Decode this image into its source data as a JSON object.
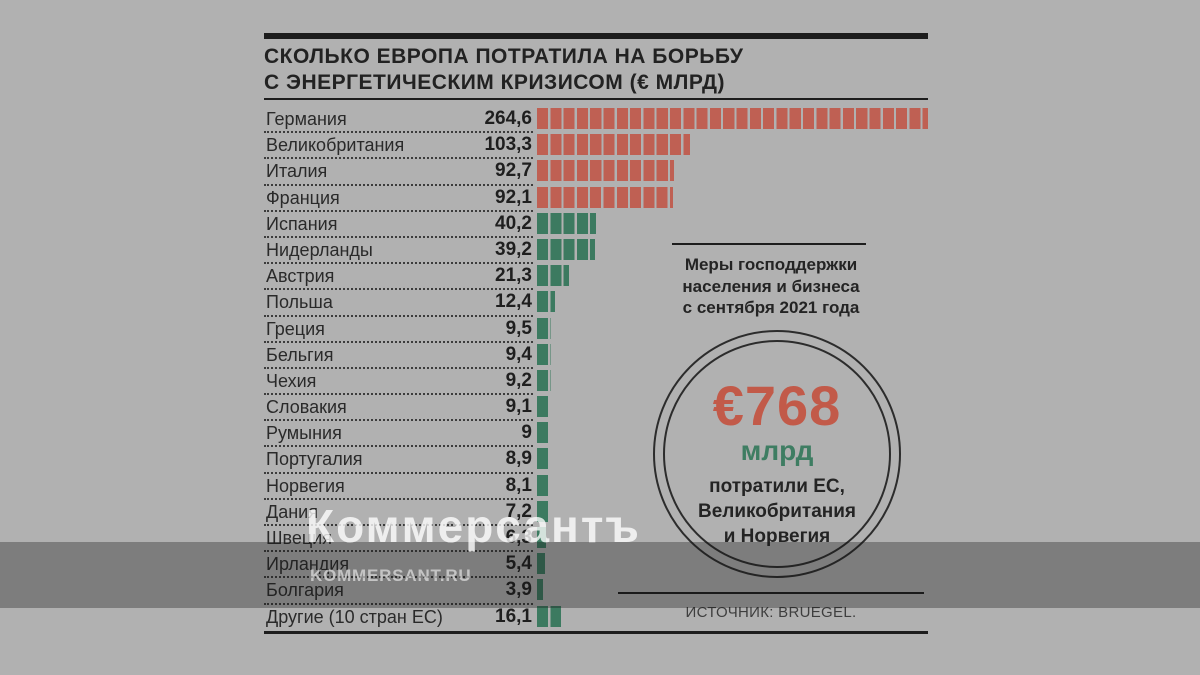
{
  "title": {
    "line1": "СКОЛЬКО ЕВРОПА ПОТРАТИЛА НА БОРЬБУ",
    "line2": "С ЭНЕРГЕТИЧЕСКИМ КРИЗИСОМ (€ МЛРД)"
  },
  "chart_data": {
    "type": "bar",
    "title": "Сколько Европа потратила на борьбу с энергетическим кризисом (€ млрд)",
    "unit": "€ млрд",
    "categories": [
      "Германия",
      "Великобритания",
      "Италия",
      "Франция",
      "Испания",
      "Нидерланды",
      "Австрия",
      "Польша",
      "Греция",
      "Бельгия",
      "Чехия",
      "Словакия",
      "Румыния",
      "Португалия",
      "Норвегия",
      "Дания",
      "Швеция",
      "Ирландия",
      "Болгария",
      "Другие (10 стран ЕС)"
    ],
    "values": [
      264.6,
      103.3,
      92.7,
      92.1,
      40.2,
      39.2,
      21.3,
      12.4,
      9.5,
      9.4,
      9.2,
      9.1,
      9,
      8.9,
      8.1,
      7.2,
      6.3,
      5.4,
      3.9,
      16.1
    ],
    "display_values": [
      "264,6",
      "103,3",
      "92,7",
      "92,1",
      "40,2",
      "39,2",
      "21,3",
      "12,4",
      "9,5",
      "9,4",
      "9,2",
      "9,1",
      "9",
      "8,9",
      "8,1",
      "7,2",
      "6,3",
      "5,4",
      "3,9",
      "16,1"
    ],
    "red_rows": 4,
    "xlim": [
      0,
      264.6
    ],
    "segment_value": 9,
    "orientation": "horizontal",
    "grid": false,
    "legend": false
  },
  "note": {
    "line1": "Меры господдержки",
    "line2": "населения и бизнеса",
    "line3": "с сентября 2021 года"
  },
  "highlight": {
    "amount": "€768",
    "unit": "млрд",
    "line1": "потратили ЕС,",
    "line2": "Великобритания",
    "line3": "и Норвегия"
  },
  "source": "ИСТОЧНИК: BRUEGEL.",
  "watermark": {
    "logo": "Коммерсантъ",
    "site": "KOMMERSANT.RU"
  },
  "colors": {
    "bar_red": "#bf6053",
    "bar_green": "#3c7a60",
    "accent_red": "#c25a49",
    "accent_green": "#3e7d62",
    "background": "#b1b1b1",
    "rule": "#1d1d1d"
  }
}
